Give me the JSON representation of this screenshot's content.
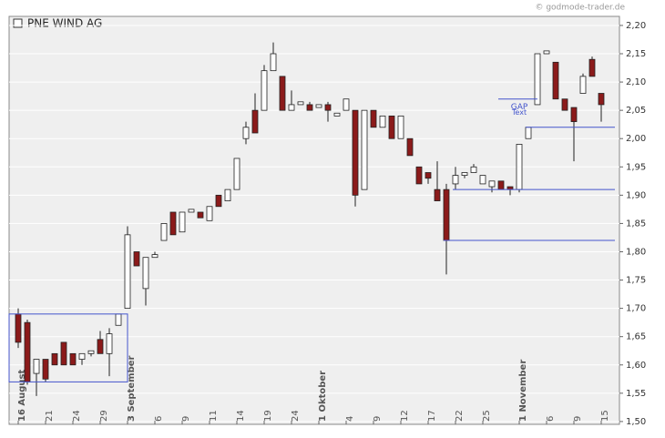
{
  "chart_data": {
    "type": "candlestick",
    "title": "PNE WIND AG",
    "watermark": "© godmode-trader.de",
    "categories": [
      "16 August",
      null,
      null,
      "21",
      null,
      null,
      "24",
      null,
      null,
      "29",
      null,
      null,
      "3 September",
      null,
      null,
      "6",
      null,
      null,
      "9",
      null,
      null,
      "11",
      null,
      null,
      "14",
      null,
      null,
      "19",
      null,
      null,
      "24",
      null,
      null,
      "1 Oktober",
      null,
      null,
      "4",
      null,
      null,
      "9",
      null,
      null,
      "12",
      null,
      null,
      "17",
      null,
      null,
      "22",
      null,
      null,
      "25",
      null,
      null,
      null,
      "1 November",
      null,
      null,
      "6",
      null,
      null,
      "9",
      null,
      null,
      "15"
    ],
    "open": [
      1.69,
      1.675,
      1.585,
      1.61,
      1.62,
      1.64,
      1.62,
      1.61,
      1.62,
      1.645,
      1.62,
      1.67,
      1.7,
      1.8,
      1.735,
      1.79,
      1.82,
      1.87,
      1.835,
      1.87,
      1.87,
      1.855,
      1.9,
      1.89,
      1.91,
      2.0,
      2.05,
      2.05,
      2.12,
      2.11,
      2.05,
      2.06,
      2.06,
      2.055,
      2.06,
      2.04,
      2.05,
      2.05,
      1.91,
      2.05,
      2.02,
      2.04,
      2.0,
      2.0,
      1.95,
      1.94,
      1.91,
      1.91,
      1.92,
      1.935,
      1.94,
      1.92,
      1.915,
      1.925,
      1.915,
      1.91,
      2.0,
      2.06,
      2.15,
      2.135,
      2.07,
      2.055,
      2.08,
      2.14,
      2.08
    ],
    "high": [
      1.7,
      1.68,
      1.61,
      1.61,
      1.62,
      1.64,
      1.62,
      1.62,
      1.625,
      1.66,
      1.665,
      1.69,
      1.845,
      1.8,
      1.79,
      1.8,
      1.85,
      1.87,
      1.87,
      1.875,
      1.87,
      1.88,
      1.9,
      1.91,
      1.965,
      2.03,
      2.08,
      2.13,
      2.17,
      2.11,
      2.085,
      2.065,
      2.065,
      2.06,
      2.065,
      2.045,
      2.07,
      2.05,
      2.05,
      2.05,
      2.04,
      2.04,
      2.04,
      2.0,
      1.95,
      1.94,
      1.96,
      1.92,
      1.95,
      1.94,
      1.955,
      1.935,
      1.925,
      1.925,
      1.915,
      1.99,
      2.02,
      2.15,
      2.155,
      2.135,
      2.07,
      2.055,
      2.115,
      2.145,
      2.08
    ],
    "low": [
      1.63,
      1.565,
      1.545,
      1.57,
      1.6,
      1.6,
      1.6,
      1.6,
      1.615,
      1.62,
      1.58,
      1.67,
      1.7,
      1.775,
      1.705,
      1.79,
      1.82,
      1.83,
      1.835,
      1.87,
      1.86,
      1.855,
      1.88,
      1.89,
      1.91,
      1.99,
      2.01,
      2.05,
      2.12,
      2.05,
      2.05,
      2.06,
      2.05,
      2.055,
      2.03,
      2.04,
      2.05,
      1.88,
      1.91,
      2.02,
      2.02,
      2.0,
      2.0,
      1.97,
      1.92,
      1.92,
      1.89,
      1.76,
      1.91,
      1.93,
      1.94,
      1.92,
      1.905,
      1.91,
      1.9,
      1.905,
      2.0,
      2.06,
      2.15,
      2.07,
      2.05,
      1.96,
      2.08,
      2.11,
      2.03
    ],
    "close": [
      1.64,
      1.57,
      1.61,
      1.575,
      1.6,
      1.6,
      1.6,
      1.62,
      1.625,
      1.62,
      1.655,
      1.69,
      1.83,
      1.775,
      1.79,
      1.795,
      1.85,
      1.83,
      1.87,
      1.875,
      1.86,
      1.88,
      1.88,
      1.91,
      1.965,
      2.02,
      2.01,
      2.12,
      2.15,
      2.05,
      2.06,
      2.065,
      2.05,
      2.06,
      2.05,
      2.045,
      2.07,
      1.9,
      2.05,
      2.02,
      2.04,
      2.0,
      2.04,
      1.97,
      1.92,
      1.93,
      1.89,
      1.82,
      1.935,
      1.94,
      1.95,
      1.935,
      1.925,
      1.91,
      1.91,
      1.99,
      2.02,
      2.15,
      2.155,
      2.07,
      2.05,
      2.03,
      2.11,
      2.11,
      2.06
    ],
    "up_color": "#ffffff",
    "down_color": "#8b1a1a",
    "line_color": "#4455cc",
    "box": {
      "low": 1.57,
      "high": 1.69,
      "end": 12
    },
    "gap_lines": [
      {
        "value": 1.82,
        "start": 47
      },
      {
        "value": 1.91,
        "start": 48
      },
      {
        "value": 2.02,
        "start": 56
      },
      {
        "value": 2.07,
        "start": 53,
        "end": 57
      }
    ],
    "gap_texts": [
      "GAP",
      "Text"
    ],
    "ylim": [
      1.495,
      2.216
    ],
    "yticks": [
      {
        "value": 1.5,
        "label": "1,50"
      },
      {
        "value": 1.55,
        "label": "1,55"
      },
      {
        "value": 1.6,
        "label": "1,60"
      },
      {
        "value": 1.65,
        "label": "1,65"
      },
      {
        "value": 1.7,
        "label": "1,70"
      },
      {
        "value": 1.75,
        "label": "1,75"
      },
      {
        "value": 1.8,
        "label": "1,80"
      },
      {
        "value": 1.85,
        "label": "1,85"
      },
      {
        "value": 1.9,
        "label": "1,90"
      },
      {
        "value": 1.95,
        "label": "1,95"
      },
      {
        "value": 2.0,
        "label": "2,00"
      },
      {
        "value": 2.05,
        "label": "2,05"
      },
      {
        "value": 2.1,
        "label": "2,10"
      },
      {
        "value": 2.15,
        "label": "2,15"
      },
      {
        "value": 2.2,
        "label": "2,20"
      }
    ],
    "grid": true
  }
}
